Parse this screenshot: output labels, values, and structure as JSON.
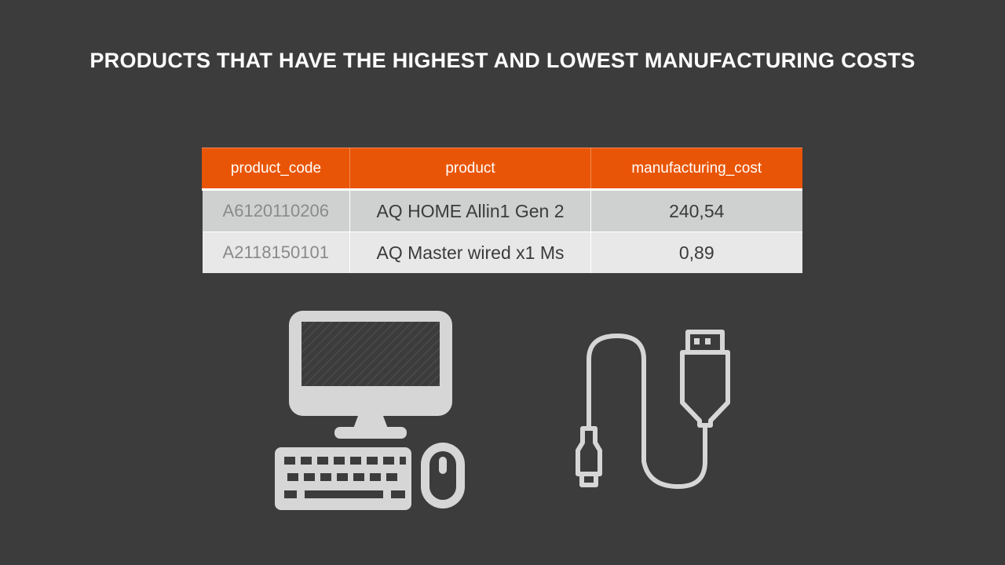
{
  "slide": {
    "title": "PRODUCTS THAT HAVE THE HIGHEST AND LOWEST MANUFACTURING COSTS"
  },
  "table": {
    "columns": [
      "product_code",
      "product",
      "manufacturing_cost"
    ],
    "rows": [
      [
        "A6120110206",
        "AQ HOME Allin1 Gen 2",
        "240,54"
      ],
      [
        "A2118150101",
        "AQ Master wired x1 Ms",
        "0,89"
      ]
    ]
  },
  "icons": {
    "left": "desktop-computer-icon",
    "right": "usb-cable-icon"
  },
  "colors": {
    "background": "#3c3c3c",
    "header": "#e95506",
    "row_dark": "#cfd1d0",
    "row_light": "#e7e8e7",
    "icon": "#d6d6d6"
  }
}
